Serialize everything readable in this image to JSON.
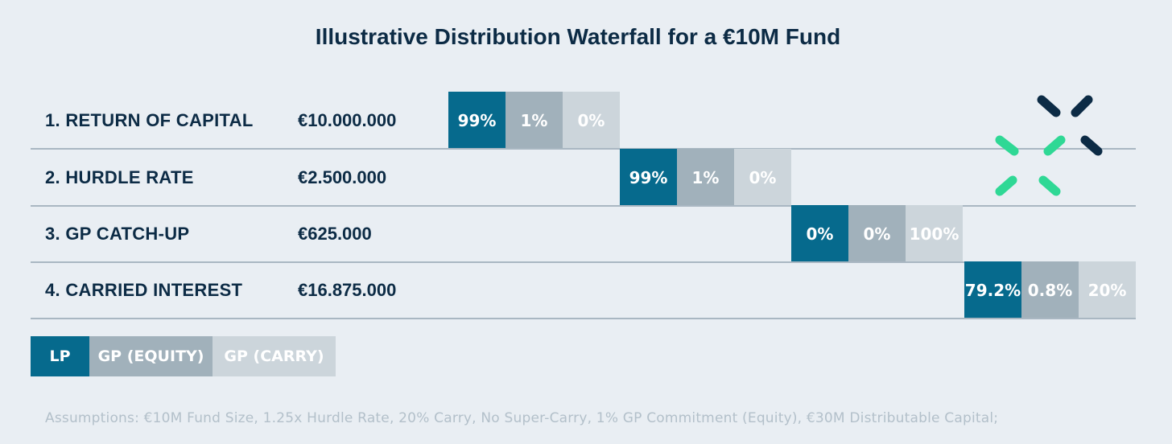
{
  "chart_data": {
    "type": "table",
    "title": "Illustrative Distribution Waterfall for a €10M Fund",
    "legend": [
      {
        "name": "LP",
        "color": "#066a8d"
      },
      {
        "name": "GP (EQUITY)",
        "color": "#a1b1bb"
      },
      {
        "name": "GP (CARRY)",
        "color": "#ccd5db"
      }
    ],
    "rows": [
      {
        "label": "1. RETURN OF CAPITAL",
        "amount": "€10.000.000",
        "splits": [
          "99%",
          "1%",
          "0%"
        ]
      },
      {
        "label": "2. HURDLE RATE",
        "amount": "€2.500.000",
        "splits": [
          "99%",
          "1%",
          "0%"
        ]
      },
      {
        "label": "3. GP CATCH-UP",
        "amount": "€625.000",
        "splits": [
          "0%",
          "0%",
          "100%"
        ]
      },
      {
        "label": "4. CARRIED INTEREST",
        "amount": "€16.875.000",
        "splits": [
          "79.2%",
          "0.8%",
          "20%"
        ]
      }
    ],
    "assumptions": "Assumptions: €10M Fund Size, 1.25x Hurdle Rate, 20% Carry, No Super-Carry, 1% GP Commitment (Equity), €30M Distributable Capital;"
  },
  "colors": {
    "navy": "#0c2b45",
    "logo_green": "#2fd895",
    "logo_navy": "#0c2b45"
  },
  "logo": {
    "icon": "brand-mark-icon"
  }
}
